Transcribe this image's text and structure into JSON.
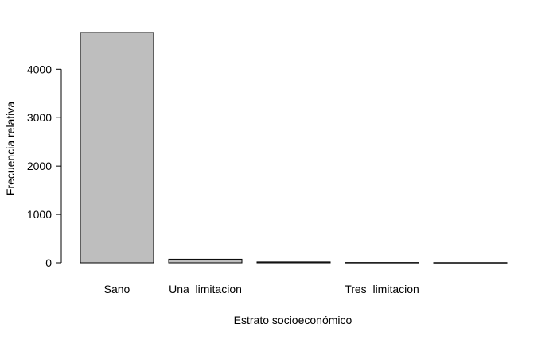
{
  "chart_data": {
    "type": "bar",
    "title": "",
    "xlabel": "Estrato socioeconómico",
    "ylabel": "Frecuencia relativa",
    "categories": [
      "Sano",
      "Una_limitacion",
      "",
      "Tres_limitacion",
      ""
    ],
    "values": [
      4760,
      75,
      18,
      6,
      4
    ],
    "ylim": [
      0,
      4760
    ],
    "yticks": [
      0,
      1000,
      2000,
      3000,
      4000
    ],
    "bar_color": "#bebebe",
    "bar_stroke": "#000000",
    "grid": false,
    "legend": "none"
  }
}
